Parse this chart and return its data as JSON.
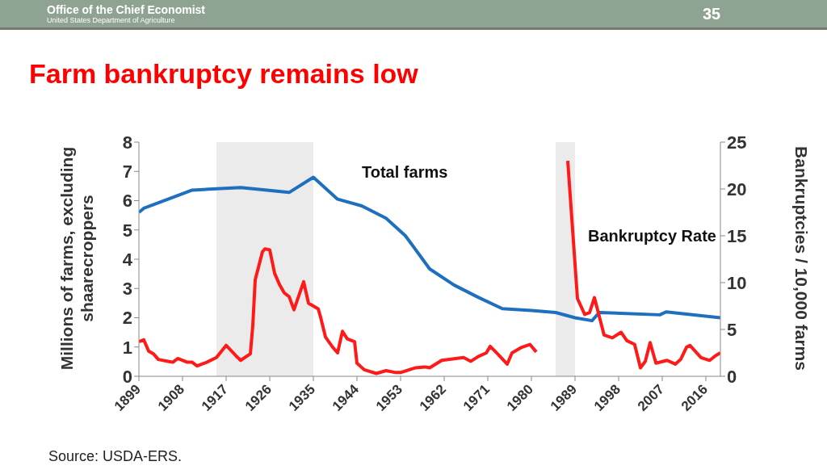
{
  "chart_data": {
    "type": "line",
    "title": "Farm bankruptcy remains low",
    "ylabel": "Millions of farms, excluding shaarecroppers",
    "y2label": "Bankruptcies / 10,000 farms",
    "annotations": [
      "Office of the Chief Economist",
      "United States Department of Agriculture",
      "35",
      "Source: USDA-ERS."
    ],
    "xlim": [
      1899,
      2019
    ],
    "xticks": [
      1899,
      1908,
      1917,
      1926,
      1935,
      1944,
      1953,
      1962,
      1971,
      1980,
      1989,
      1998,
      2007,
      2016
    ],
    "ylim": [
      0,
      8
    ],
    "yticks": [
      0,
      1,
      2,
      3,
      4,
      5,
      6,
      7,
      8
    ],
    "y2lim": [
      0,
      25
    ],
    "y2ticks": [
      0,
      5,
      10,
      15,
      20,
      25
    ],
    "marker": "none",
    "line_style": "solid",
    "grid": false,
    "bands": [
      {
        "axis": "x",
        "from": 1915,
        "to": 1935,
        "color": "#ebebeb"
      },
      {
        "axis": "x",
        "from": 1985,
        "to": 1989,
        "color": "#ebebeb"
      }
    ],
    "series": [
      {
        "name": "Total farms",
        "color": "#1f6fbf",
        "x": [
          1899,
          1900,
          1910,
          1920,
          1930,
          1935,
          1940,
          1945,
          1950,
          1954,
          1959,
          1964,
          1969,
          1974,
          1980,
          1985,
          1989,
          1992.5,
          1994,
          2006.5,
          2007.8,
          2019
        ],
        "values": [
          5.6,
          5.74,
          6.36,
          6.45,
          6.28,
          6.8,
          6.05,
          5.82,
          5.4,
          4.8,
          3.67,
          3.12,
          2.7,
          2.31,
          2.25,
          2.18,
          2.0,
          1.9,
          2.18,
          2.1,
          2.2,
          2.0
        ]
      },
      {
        "name": "Bankruptcy Rate",
        "color": "#ff1a1a",
        "axis": "y2",
        "x": [
          1899,
          1900,
          1901,
          1902,
          1903,
          1905,
          1906,
          1907,
          1909,
          1910,
          1911,
          1913,
          1915,
          1917,
          1919,
          1920,
          1922,
          1922.5,
          1923,
          1924.5,
          1925,
          1926,
          1927,
          1928,
          1929,
          1930,
          1931,
          1933,
          1934,
          1936,
          1936.5,
          1937.5,
          1939,
          1940,
          1941,
          1942,
          1943.5,
          1944,
          1945.5,
          1948,
          1950,
          1952,
          1953,
          1956,
          1958,
          1959,
          1961.5,
          1966,
          1967.5,
          1969,
          1970.7,
          1971.5,
          1973,
          1975,
          1976,
          1978,
          1979.7,
          1981,
          1984,
          1987.5,
          1989.5,
          1991,
          1992,
          1993,
          1995,
          1996.7,
          1998.5,
          1999.7,
          2001.3,
          2002.5,
          2003.5,
          2004.5,
          2005.7,
          2008,
          2009.7,
          2010.8,
          2012,
          2012.7,
          2015,
          2016.8,
          2018,
          2019
        ],
        "values": [
          3.7,
          3.9,
          2.7,
          2.4,
          1.8,
          1.6,
          1.5,
          1.9,
          1.5,
          1.5,
          1.1,
          1.5,
          2.0,
          3.3,
          2.2,
          1.7,
          2.4,
          5.4,
          10.3,
          13.3,
          13.6,
          13.5,
          11.0,
          9.8,
          8.9,
          8.5,
          7.1,
          10.1,
          7.8,
          7.2,
          6.3,
          4.2,
          3.1,
          2.5,
          4.8,
          4.0,
          3.7,
          1.4,
          0.7,
          0.3,
          0.6,
          0.4,
          0.4,
          0.9,
          1.0,
          0.9,
          1.7,
          2.0,
          1.6,
          2.1,
          2.5,
          3.2,
          2.4,
          1.3,
          2.5,
          3.1,
          3.4,
          2.6,
          null,
          23.0,
          8.3,
          6.6,
          6.8,
          8.4,
          4.4,
          4.1,
          4.7,
          3.8,
          3.4,
          0.9,
          1.6,
          3.6,
          1.4,
          1.7,
          1.3,
          1.8,
          3.1,
          3.3,
          2.0,
          1.7,
          2.2,
          2.5
        ]
      }
    ]
  }
}
